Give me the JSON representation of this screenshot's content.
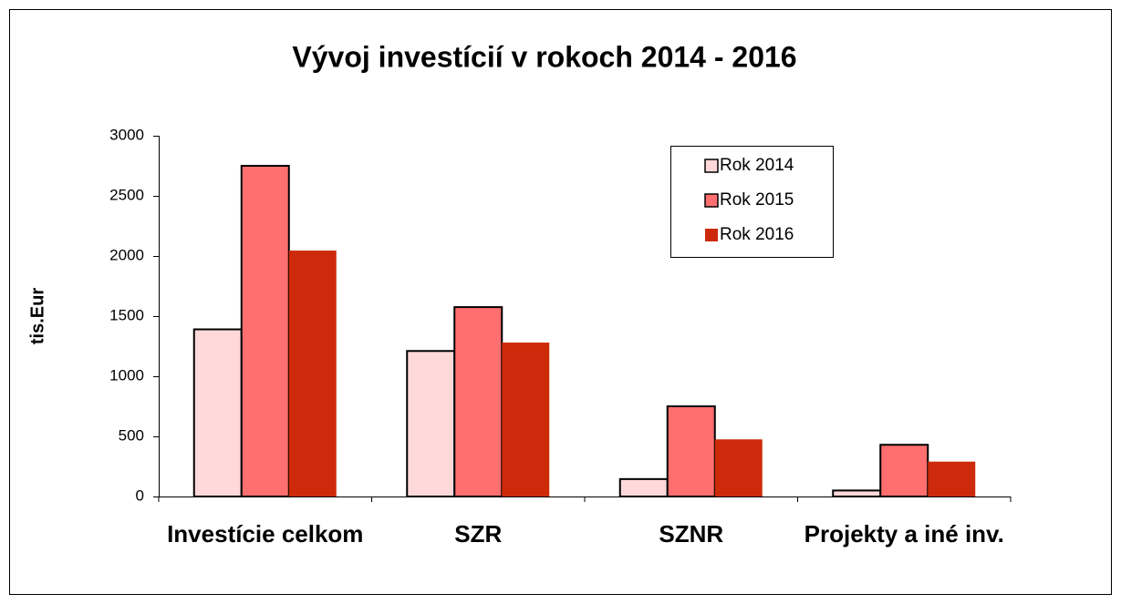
{
  "chart_data": {
    "type": "bar",
    "title": "Vývoj investícií v rokoch 2014 - 2016",
    "y_label": "tis.Eur",
    "categories": [
      "Investície celkom",
      "SZR",
      "SZNR",
      "Projekty a iné inv."
    ],
    "series": [
      {
        "name": "Rok 2014",
        "color": "#ffd9d9",
        "outline": true,
        "values": [
          1390,
          1210,
          145,
          50
        ]
      },
      {
        "name": "Rok 2015",
        "color": "#ff6f6f",
        "outline": true,
        "values": [
          2750,
          1575,
          750,
          430
        ]
      },
      {
        "name": "Rok 2016",
        "color": "#cc2a0a",
        "outline": false,
        "values": [
          2045,
          1280,
          475,
          290
        ]
      }
    ],
    "ylim": [
      0,
      3000
    ],
    "yticks": [
      0,
      500,
      1000,
      1500,
      2000,
      2500,
      3000
    ],
    "legend": "top-right",
    "grid": false
  }
}
